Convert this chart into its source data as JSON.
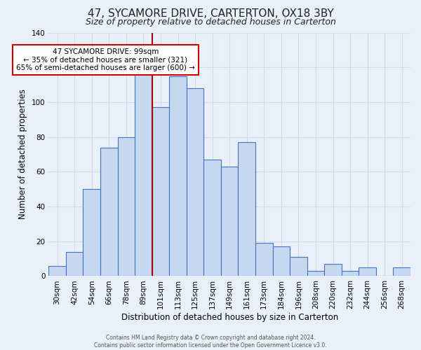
{
  "title": "47, SYCAMORE DRIVE, CARTERTON, OX18 3BY",
  "subtitle": "Size of property relative to detached houses in Carterton",
  "xlabel": "Distribution of detached houses by size in Carterton",
  "ylabel": "Number of detached properties",
  "bar_labels": [
    "30sqm",
    "42sqm",
    "54sqm",
    "66sqm",
    "78sqm",
    "89sqm",
    "101sqm",
    "113sqm",
    "125sqm",
    "137sqm",
    "149sqm",
    "161sqm",
    "173sqm",
    "184sqm",
    "196sqm",
    "208sqm",
    "220sqm",
    "232sqm",
    "244sqm",
    "256sqm",
    "268sqm"
  ],
  "bar_values": [
    6,
    14,
    50,
    74,
    80,
    118,
    97,
    115,
    108,
    67,
    63,
    77,
    19,
    17,
    11,
    3,
    7,
    3,
    5,
    0,
    5
  ],
  "bar_color": "#c5d8f0",
  "bar_edge_color": "#4472c4",
  "ylim": [
    0,
    140
  ],
  "yticks": [
    0,
    20,
    40,
    60,
    80,
    100,
    120,
    140
  ],
  "vline_color": "#aa0000",
  "annotation_title": "47 SYCAMORE DRIVE: 99sqm",
  "annotation_line1": "← 35% of detached houses are smaller (321)",
  "annotation_line2": "65% of semi-detached houses are larger (600) →",
  "annotation_box_color": "#ffffff",
  "annotation_box_edge": "#cc0000",
  "footer1": "Contains HM Land Registry data © Crown copyright and database right 2024.",
  "footer2": "Contains public sector information licensed under the Open Government Licence v3.0.",
  "bg_color": "#eaf0f9",
  "plot_bg_color": "#eaf0f9",
  "grid_color": "#d0daea",
  "title_fontsize": 11,
  "subtitle_fontsize": 9,
  "axis_label_fontsize": 8.5,
  "tick_fontsize": 7.5,
  "ann_fontsize": 7.5
}
